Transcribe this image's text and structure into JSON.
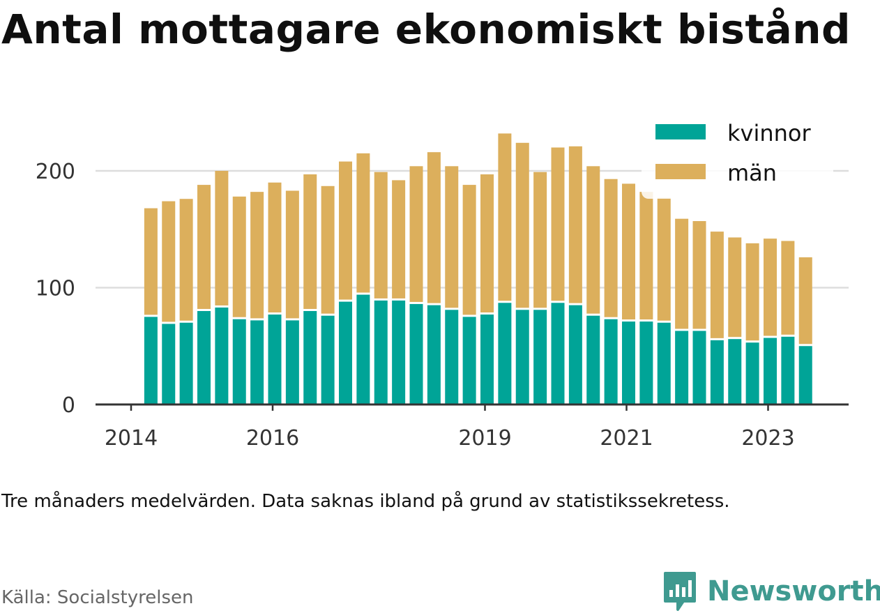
{
  "title": "Antal mottagare ekonomiskt bistånd",
  "note": "Tre månaders medelvärden. Data saknas ibland på grund av statistikssekretess.",
  "source": "Källa: Socialstyrelsen",
  "brand": {
    "name": "Newsworthy",
    "icon": "newsworthy-logo-icon",
    "color": "#3f9a90"
  },
  "chart_data": {
    "type": "bar",
    "stacked": true,
    "legend_position": "top-right",
    "grid": true,
    "ylim": [
      0,
      240
    ],
    "yticks": [
      0,
      100,
      200
    ],
    "xtick_labels": [
      "2014",
      "2016",
      "2019",
      "2021",
      "2023"
    ],
    "categories": [
      "2014-Q2",
      "2014-Q3",
      "2014-Q4",
      "2015-Q1",
      "2015-Q2",
      "2015-Q3",
      "2015-Q4",
      "2016-Q1",
      "2016-Q2",
      "2016-Q3",
      "2016-Q4",
      "2017-Q1",
      "2017-Q2",
      "2017-Q3",
      "2017-Q4",
      "2018-Q1",
      "2018-Q2",
      "2018-Q3",
      "2018-Q4",
      "2019-Q1",
      "2019-Q2",
      "2019-Q3",
      "2019-Q4",
      "2020-Q1",
      "2020-Q2",
      "2020-Q3",
      "2020-Q4",
      "2021-Q1",
      "2021-Q2",
      "2021-Q3",
      "2021-Q4",
      "2022-Q1",
      "2022-Q2",
      "2022-Q3",
      "2022-Q4",
      "2023-Q1",
      "2023-Q2",
      "2023-Q3"
    ],
    "series": [
      {
        "name": "kvinnor",
        "color": "#00a497",
        "values": [
          75,
          69,
          70,
          80,
          83,
          73,
          72,
          77,
          72,
          80,
          76,
          88,
          94,
          89,
          89,
          86,
          85,
          81,
          75,
          77,
          87,
          81,
          81,
          87,
          85,
          76,
          73,
          71,
          71,
          70,
          63,
          63,
          55,
          56,
          53,
          57,
          58,
          50
        ]
      },
      {
        "name": "män",
        "color": "#dcaf5c",
        "values": [
          93,
          105,
          106,
          108,
          117,
          105,
          110,
          113,
          111,
          117,
          111,
          120,
          121,
          110,
          103,
          118,
          131,
          123,
          113,
          120,
          145,
          143,
          118,
          133,
          136,
          128,
          120,
          118,
          111,
          107,
          96,
          94,
          93,
          87,
          85,
          85,
          82,
          76
        ]
      }
    ]
  }
}
